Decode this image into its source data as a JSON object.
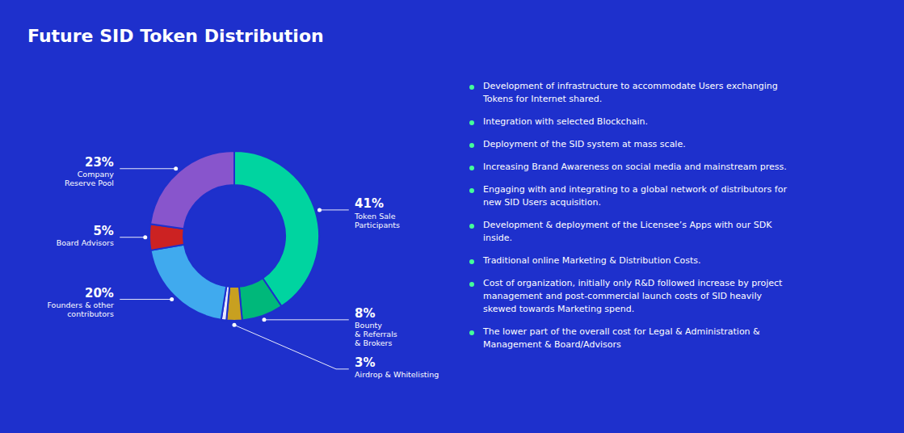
{
  "chart_data": {
    "type": "donut",
    "title": "Future SID Token Distribution",
    "categories": [
      "Token Sale\nParticipants",
      "Bounty\n& Referrals\n& Brokers",
      "Airdrop & Whitelisting",
      null,
      "Founders & other\ncontributors",
      "Board Advisors",
      "Company\nReserve Pool"
    ],
    "values": [
      41,
      8,
      3,
      1,
      20,
      5,
      23
    ],
    "value_labels": [
      "41%",
      "8%",
      "3%",
      null,
      "20%",
      "5%",
      "23%"
    ],
    "colors": [
      "#00d4a0",
      "#00b87a",
      "#c8a020",
      "#e8e8ff",
      "#40aaee",
      "#cc2222",
      "#8855cc"
    ],
    "data_labels": true,
    "annotations": [
      "Development of infrastructure to accommodate Users exchanging\nTokens for Internet shared.",
      "Integration with selected Blockchain.",
      "Deployment of the SID system at mass scale.",
      "Increasing Brand Awareness on social media and mainstream press.",
      "Engaging with and integrating to a global network of distributors for\nnew SID Users acquisition.",
      "Development & deployment of the Licensee’s Apps with our SDK\ninside.",
      "Traditional online Marketing & Distribution Costs.",
      "Cost of organization, initially only R&D followed increase by project\nmanagement and post-commercial launch costs of SID heavily\nskewed towards Marketing spend.",
      "The lower part of the overall cost for Legal & Administration &\nManagement & Board/Advisors"
    ]
  }
}
